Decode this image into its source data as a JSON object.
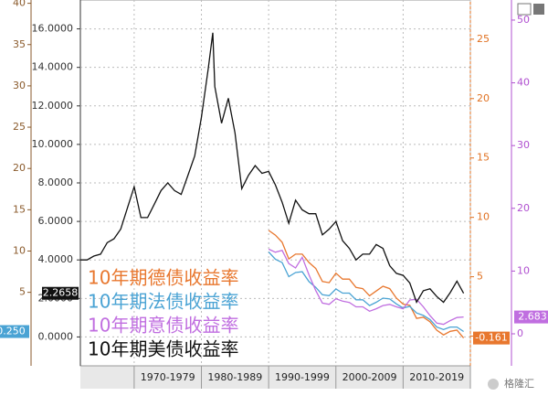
{
  "chart_data": {
    "type": "line",
    "xlim": [
      1962,
      2020
    ],
    "xticks": [
      1970,
      1980,
      1990,
      2000,
      2010,
      2020
    ],
    "x_band_labels": [
      "1970-1979",
      "1980-1989",
      "1990-1999",
      "2000-2009",
      "2010-2019"
    ],
    "ylim": [
      -1.5,
      17.5
    ],
    "yticks": [
      {
        "value": 0,
        "label": "0.0000"
      },
      {
        "value": 2,
        "label": "2.0000"
      },
      {
        "value": 4,
        "label": "4.0000"
      },
      {
        "value": 6,
        "label": "6.0000"
      },
      {
        "value": 8,
        "label": "8.0000"
      },
      {
        "value": 10,
        "label": "10.0000"
      },
      {
        "value": 12,
        "label": "12.0000"
      },
      {
        "value": 14,
        "label": "14.0000"
      },
      {
        "value": 16,
        "label": "16.0000"
      }
    ],
    "y2lim": [
      -2.5,
      28.3
    ],
    "y2ticks": [
      0,
      5,
      10,
      15,
      20,
      25
    ],
    "y3lim": [
      -3.9,
      40.4
    ],
    "y3ticks": [
      5,
      10,
      15,
      20,
      25,
      30,
      35,
      40
    ],
    "y4lim": [
      -5.1,
      53.2
    ],
    "y4ticks": [
      0,
      10,
      20,
      30,
      40,
      50
    ],
    "grid": true,
    "watermark": "格隆汇",
    "series": [
      {
        "name": "10年期德债收益率",
        "color": "#e8772e",
        "axis": "y2",
        "x": [
          1990,
          1991,
          1992,
          1993,
          1994,
          1995,
          1996,
          1997,
          1998,
          1999,
          2000,
          2001,
          2002,
          2003,
          2004,
          2005,
          2006,
          2007,
          2008,
          2009,
          2010,
          2011,
          2012,
          2013,
          2014,
          2015,
          2016,
          2017,
          2018,
          2019
        ],
        "values": [
          8.9,
          8.5,
          7.9,
          6.5,
          6.9,
          6.9,
          6.2,
          5.7,
          4.6,
          4.5,
          5.3,
          4.8,
          4.8,
          4.1,
          4.0,
          3.4,
          3.8,
          4.2,
          4.0,
          3.2,
          2.7,
          2.6,
          1.5,
          1.6,
          1.2,
          0.5,
          0.1,
          0.4,
          0.5,
          -0.161
        ],
        "value_labels": [
          null,
          null,
          null,
          null,
          null,
          null,
          null,
          null,
          null,
          null,
          null,
          null,
          null,
          null,
          null,
          null,
          null,
          null,
          null,
          null,
          null,
          null,
          null,
          null,
          null,
          null,
          null,
          null,
          null,
          "-0.161"
        ]
      },
      {
        "name": "10年期法债收益率",
        "color": "#4aa3d4",
        "axis": "y3",
        "x": [
          1990,
          1991,
          1992,
          1993,
          1994,
          1995,
          1996,
          1997,
          1998,
          1999,
          2000,
          2001,
          2002,
          2003,
          2004,
          2005,
          2006,
          2007,
          2008,
          2009,
          2010,
          2011,
          2012,
          2013,
          2014,
          2015,
          2016,
          2017,
          2018,
          2019
        ],
        "values": [
          9.9,
          9.0,
          8.6,
          6.9,
          7.4,
          7.5,
          6.3,
          5.6,
          4.7,
          4.6,
          5.4,
          4.9,
          4.9,
          4.1,
          4.1,
          3.4,
          3.8,
          4.3,
          4.2,
          3.6,
          3.1,
          3.3,
          2.5,
          2.2,
          1.7,
          0.8,
          0.5,
          0.8,
          0.8,
          0.25
        ],
        "value_labels": [
          null,
          null,
          null,
          null,
          null,
          null,
          null,
          null,
          null,
          null,
          null,
          null,
          null,
          null,
          null,
          null,
          null,
          null,
          null,
          null,
          null,
          null,
          null,
          null,
          null,
          null,
          null,
          null,
          null,
          "0.250"
        ]
      },
      {
        "name": "10年期意债收益率",
        "color": "#c06ee0",
        "axis": "y4",
        "x": [
          1990,
          1991,
          1992,
          1993,
          1994,
          1995,
          1996,
          1997,
          1998,
          1999,
          2000,
          2001,
          2002,
          2003,
          2004,
          2005,
          2006,
          2007,
          2008,
          2009,
          2010,
          2011,
          2012,
          2013,
          2014,
          2015,
          2016,
          2017,
          2018,
          2019
        ],
        "values": [
          13.5,
          13.0,
          13.3,
          11.2,
          10.5,
          12.2,
          9.4,
          6.9,
          4.9,
          4.7,
          5.6,
          5.2,
          5.0,
          4.3,
          4.3,
          3.6,
          4.0,
          4.5,
          4.7,
          4.3,
          4.0,
          5.4,
          5.5,
          4.3,
          2.9,
          1.7,
          1.5,
          2.1,
          2.6,
          2.683
        ],
        "value_labels": [
          null,
          null,
          null,
          null,
          null,
          null,
          null,
          null,
          null,
          null,
          null,
          null,
          null,
          null,
          null,
          null,
          null,
          null,
          null,
          null,
          null,
          null,
          null,
          null,
          null,
          null,
          null,
          null,
          null,
          "2.683"
        ]
      },
      {
        "name": "10年期美债收益率",
        "color": "#111111",
        "axis": "y",
        "x": [
          1962,
          1963,
          1964,
          1965,
          1966,
          1967,
          1968,
          1969,
          1970,
          1971,
          1972,
          1973,
          1974,
          1975,
          1976,
          1977,
          1978,
          1979,
          1980,
          1981,
          1981.7,
          1982,
          1983,
          1984,
          1985,
          1986,
          1987,
          1988,
          1989,
          1990,
          1991,
          1992,
          1993,
          1994,
          1995,
          1996,
          1997,
          1998,
          1999,
          2000,
          2001,
          2002,
          2003,
          2004,
          2005,
          2006,
          2007,
          2008,
          2009,
          2010,
          2011,
          2012,
          2013,
          2014,
          2015,
          2016,
          2017,
          2018,
          2019
        ],
        "values": [
          4.0,
          4.0,
          4.2,
          4.3,
          4.9,
          5.1,
          5.6,
          6.7,
          7.8,
          6.2,
          6.2,
          6.9,
          7.6,
          8.0,
          7.6,
          7.4,
          8.4,
          9.4,
          11.4,
          13.9,
          15.8,
          13.0,
          11.1,
          12.4,
          10.6,
          7.7,
          8.4,
          8.9,
          8.5,
          8.6,
          7.9,
          7.0,
          5.9,
          7.1,
          6.6,
          6.4,
          6.4,
          5.3,
          5.6,
          6.0,
          5.0,
          4.6,
          4.0,
          4.3,
          4.3,
          4.8,
          4.6,
          3.7,
          3.3,
          3.2,
          2.8,
          1.8,
          2.4,
          2.5,
          2.1,
          1.8,
          2.3,
          2.9,
          2.2658
        ],
        "value_labels": [
          null,
          null,
          null,
          null,
          null,
          null,
          null,
          null,
          null,
          null,
          null,
          null,
          null,
          null,
          null,
          null,
          null,
          null,
          null,
          null,
          null,
          null,
          null,
          null,
          null,
          null,
          null,
          null,
          null,
          null,
          null,
          null,
          null,
          null,
          null,
          null,
          null,
          null,
          null,
          null,
          null,
          null,
          null,
          null,
          null,
          null,
          null,
          null,
          null,
          null,
          null,
          null,
          null,
          null,
          null,
          null,
          null,
          null,
          "2.2658"
        ]
      }
    ]
  }
}
